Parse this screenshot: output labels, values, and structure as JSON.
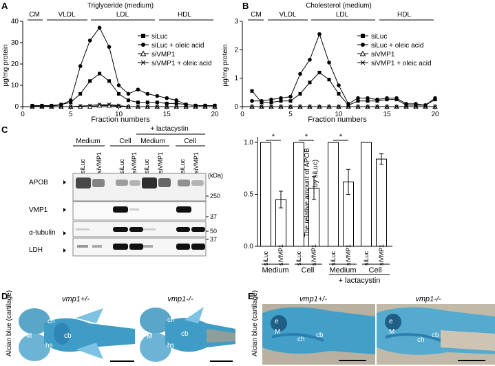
{
  "panels": {
    "A": {
      "letter": "A",
      "title": "Triglyceride (medium)",
      "regions": [
        "CM",
        "VLDL",
        "LDL",
        "HDL"
      ],
      "xlabel": "Fraction numbers",
      "ylabel": "µg/mg protein"
    },
    "B": {
      "letter": "B",
      "title": "Cholesterol (medium)",
      "regions": [
        "CM",
        "VLDL",
        "LDL",
        "HDL"
      ],
      "xlabel": "Fraction numbers",
      "ylabel": "µg/mg protein"
    },
    "C": {
      "letter": "C",
      "treatment_label": "+ lactacystin",
      "groups": [
        "Medium",
        "Cell",
        "Medium",
        "Cell"
      ],
      "lanes": [
        "siLuc",
        "siVMP1",
        "siLuc",
        "siVMP1",
        "siLuc",
        "siVMP1",
        "siLuc",
        "siVMP1"
      ],
      "kda_label": "(kDa)",
      "blots": [
        {
          "name": "APOB",
          "marker": "250"
        },
        {
          "name": "VMP1",
          "marker": "37"
        },
        {
          "name": "α-tubulin",
          "marker": "50"
        },
        {
          "name": "LDH",
          "marker": "37"
        }
      ],
      "bar_ylabel_1": "The relative amount of APOB",
      "bar_ylabel_2": "(normarized by siLuc)",
      "bar_groups": [
        "Medium",
        "Cell",
        "Medium",
        "Cell"
      ],
      "bar_treatment": "+ lactacystin",
      "significance": [
        "*",
        "*",
        "*"
      ]
    },
    "D": {
      "letter": "D",
      "side_label": "Alcian blue (cartilage)",
      "genotypes": [
        "vmp1+/-",
        "vmp1-/-"
      ],
      "structures": [
        "M",
        "ch",
        "cb",
        "hs"
      ]
    },
    "E": {
      "letter": "E",
      "side_label": "Alcian blue (cartilage)",
      "genotypes": [
        "vmp1+/-",
        "vmp1-/-"
      ],
      "structures": [
        "e",
        "M",
        "ch",
        "cb"
      ]
    }
  },
  "chart_data": [
    {
      "type": "line",
      "title": "Triglyceride (medium)",
      "xlabel": "Fraction numbers",
      "ylabel": "µg/mg protein",
      "xlim": [
        0,
        20
      ],
      "ylim": [
        0,
        40
      ],
      "xticks": [
        0,
        5,
        10,
        15,
        20
      ],
      "yticks": [
        0,
        10,
        20,
        30,
        40
      ],
      "x": [
        1,
        2,
        3,
        4,
        5,
        6,
        7,
        8,
        9,
        10,
        11,
        12,
        13,
        14,
        15,
        16,
        17,
        18,
        19,
        20
      ],
      "series": [
        {
          "name": "siLuc",
          "marker": "square",
          "values": [
            0.5,
            0.5,
            0.5,
            1,
            2,
            6,
            12,
            15.5,
            12,
            6,
            3,
            2,
            2,
            2,
            1.5,
            1.5,
            1,
            0.5,
            0.5,
            0.5
          ]
        },
        {
          "name": "siLuc + oleic acid",
          "marker": "circle",
          "values": [
            0.3,
            0.3,
            0.3,
            0.8,
            3,
            19,
            31,
            37,
            28,
            10,
            6,
            8,
            6,
            5,
            4,
            3,
            1,
            0.5,
            0.5,
            0.5
          ]
        },
        {
          "name": "siVMP1",
          "marker": "triangle",
          "values": [
            0,
            0,
            0,
            0,
            0,
            0,
            0,
            0.5,
            0.5,
            0.3,
            0,
            0,
            0,
            0,
            0,
            0,
            0,
            0,
            0,
            0
          ]
        },
        {
          "name": "siVMP1 + oleic acid",
          "marker": "x",
          "values": [
            0,
            0,
            0,
            0,
            0,
            0.3,
            0.5,
            1,
            1,
            0.5,
            0,
            0,
            0,
            0,
            0,
            0,
            0,
            0,
            0,
            0
          ]
        }
      ],
      "legend": [
        "siLuc",
        "siLuc + oleic acid",
        "siVMP1",
        "siVMP1 + oleic acid"
      ]
    },
    {
      "type": "line",
      "title": "Cholesterol (medium)",
      "xlabel": "Fraction numbers",
      "ylabel": "µg/mg protein",
      "xlim": [
        0,
        20
      ],
      "ylim": [
        0,
        3
      ],
      "xticks": [
        0,
        5,
        10,
        15,
        20
      ],
      "yticks": [
        0,
        1,
        2,
        3
      ],
      "x": [
        1,
        2,
        3,
        4,
        5,
        6,
        7,
        8,
        9,
        10,
        11,
        12,
        13,
        14,
        15,
        16,
        17,
        18,
        19,
        20
      ],
      "series": [
        {
          "name": "siLuc",
          "marker": "square",
          "values": [
            0.55,
            0.15,
            0.15,
            0.2,
            0.2,
            0.45,
            0.85,
            1.2,
            0.95,
            0.45,
            0.05,
            0.2,
            0.2,
            0.2,
            0.25,
            0.25,
            0.05,
            0.05,
            0.05,
            0.25
          ]
        },
        {
          "name": "siLuc + oleic acid",
          "marker": "circle",
          "values": [
            0.2,
            0.2,
            0.25,
            0.3,
            0.35,
            1.15,
            1.65,
            2.55,
            1.55,
            0.75,
            0.1,
            0.3,
            0.3,
            0.25,
            0.3,
            0.3,
            0.1,
            0.1,
            0.05,
            0.3
          ]
        },
        {
          "name": "siVMP1",
          "marker": "triangle",
          "values": [
            0,
            0,
            0,
            0,
            0,
            0,
            0,
            0,
            0,
            0,
            0,
            0,
            0,
            0,
            0,
            0,
            0,
            0,
            0,
            0
          ]
        },
        {
          "name": "siVMP1 + oleic acid",
          "marker": "x",
          "values": [
            0,
            0,
            0,
            0,
            0,
            0,
            0,
            0,
            0,
            0,
            0,
            0,
            0,
            0,
            0,
            0,
            0,
            0,
            0,
            0
          ]
        }
      ],
      "legend": [
        "siLuc",
        "siLuc + oleic acid",
        "siVMP1",
        "siVMP1 + oleic acid"
      ]
    },
    {
      "type": "bar",
      "ylabel": "The relative amount of APOB (normarized by siLuc)",
      "ylim": [
        0,
        1.0
      ],
      "yticks": [
        0,
        0.5,
        1.0
      ],
      "categories": [
        "siLuc",
        "siVMP1",
        "siLuc",
        "siVMP1",
        "siLuc",
        "siVMP1",
        "siLuc",
        "siVMP1"
      ],
      "values": [
        1.0,
        0.45,
        1.0,
        0.56,
        1.0,
        0.62,
        1.0,
        0.84
      ],
      "errors": [
        0,
        0.08,
        0,
        0.11,
        0,
        0.12,
        0,
        0.05
      ],
      "groups": [
        "Medium",
        "Cell",
        "Medium",
        "Cell"
      ]
    }
  ]
}
